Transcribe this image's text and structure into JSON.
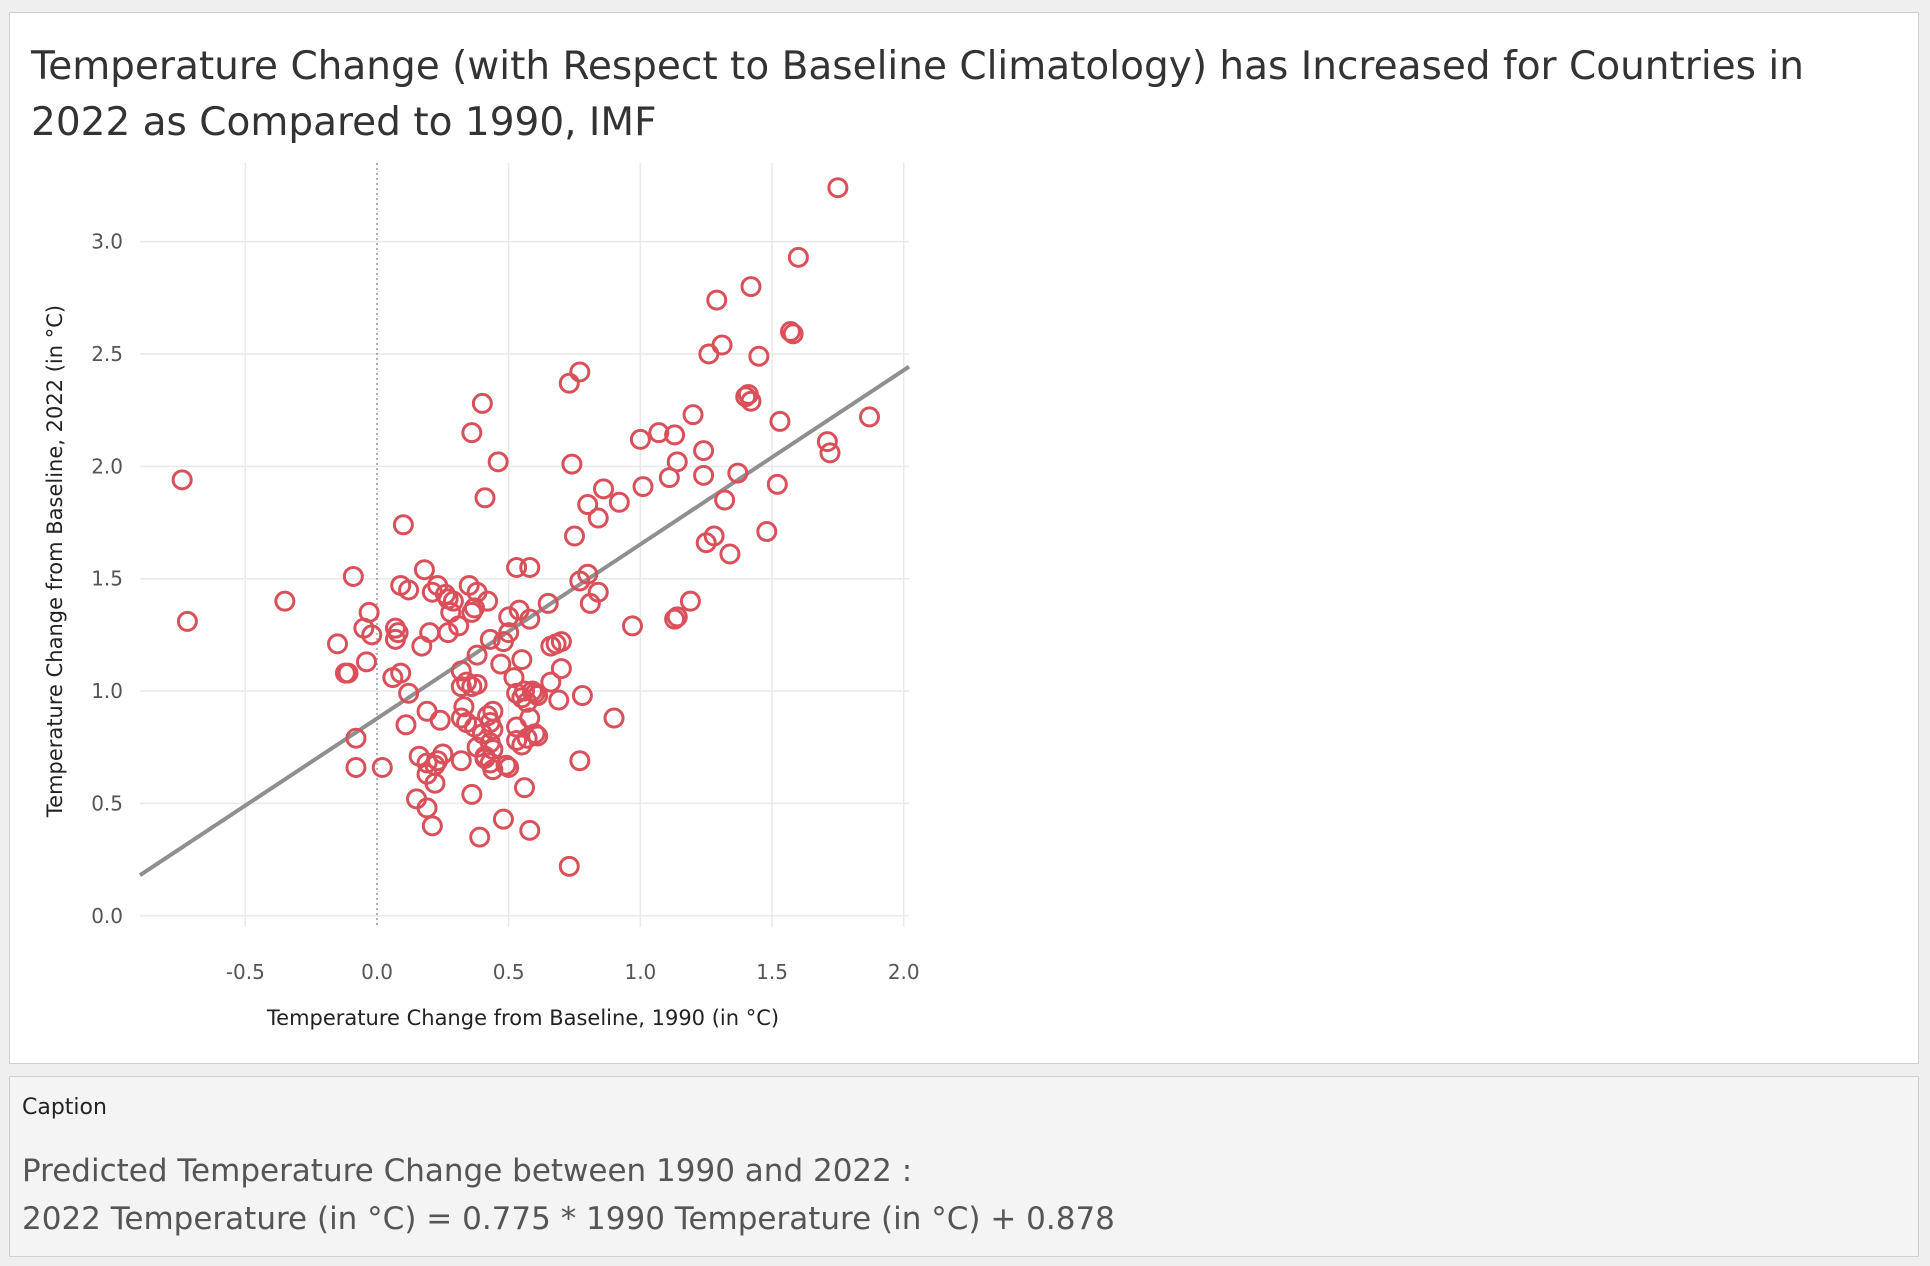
{
  "chart_data": {
    "type": "scatter",
    "title": "Temperature Change (with Respect to Baseline Climatology) has Increased for Countries in 2022 as Compared to 1990, IMF",
    "xlabel": "Temperature Change from Baseline, 1990 (in °C)",
    "ylabel": "Temperature Change from Baseline, 2022 (in °C)",
    "xlim": [
      -0.9,
      2.02
    ],
    "ylim": [
      -0.05,
      3.35
    ],
    "x_ticks": [
      "-0.5",
      "0.0",
      "0.5",
      "1.0",
      "1.5",
      "2.0"
    ],
    "y_ticks": [
      "0.0",
      "0.5",
      "1.0",
      "1.5",
      "2.0",
      "2.5",
      "3.0"
    ],
    "zero_reference_line": "x = 0 (dotted)",
    "trend_line": {
      "slope": 0.775,
      "intercept": 0.878
    },
    "point_color": "#d9505a",
    "trend_color": "#8f8f8f",
    "grid": true,
    "points": [
      [
        1.75,
        3.24
      ],
      [
        1.6,
        2.93
      ],
      [
        1.42,
        2.8
      ],
      [
        1.29,
        2.74
      ],
      [
        1.57,
        2.6
      ],
      [
        1.58,
        2.59
      ],
      [
        1.31,
        2.54
      ],
      [
        1.26,
        2.5
      ],
      [
        1.45,
        2.49
      ],
      [
        0.77,
        2.42
      ],
      [
        0.73,
        2.37
      ],
      [
        1.41,
        2.32
      ],
      [
        1.4,
        2.31
      ],
      [
        1.42,
        2.29
      ],
      [
        0.4,
        2.28
      ],
      [
        1.2,
        2.23
      ],
      [
        1.87,
        2.22
      ],
      [
        1.53,
        2.2
      ],
      [
        0.36,
        2.15
      ],
      [
        1.07,
        2.15
      ],
      [
        1.13,
        2.14
      ],
      [
        1.0,
        2.12
      ],
      [
        1.71,
        2.11
      ],
      [
        1.72,
        2.06
      ],
      [
        1.24,
        2.07
      ],
      [
        0.46,
        2.02
      ],
      [
        0.74,
        2.01
      ],
      [
        1.14,
        2.02
      ],
      [
        1.37,
        1.97
      ],
      [
        1.24,
        1.96
      ],
      [
        1.11,
        1.95
      ],
      [
        -0.74,
        1.94
      ],
      [
        1.52,
        1.92
      ],
      [
        1.01,
        1.91
      ],
      [
        0.86,
        1.9
      ],
      [
        0.41,
        1.86
      ],
      [
        1.32,
        1.85
      ],
      [
        0.92,
        1.84
      ],
      [
        0.8,
        1.83
      ],
      [
        0.84,
        1.77
      ],
      [
        0.1,
        1.74
      ],
      [
        1.48,
        1.71
      ],
      [
        1.28,
        1.69
      ],
      [
        0.75,
        1.69
      ],
      [
        1.25,
        1.66
      ],
      [
        1.34,
        1.61
      ],
      [
        0.53,
        1.55
      ],
      [
        0.58,
        1.55
      ],
      [
        0.8,
        1.52
      ],
      [
        0.18,
        1.54
      ],
      [
        -0.09,
        1.51
      ],
      [
        0.77,
        1.49
      ],
      [
        0.35,
        1.47
      ],
      [
        0.09,
        1.47
      ],
      [
        0.23,
        1.47
      ],
      [
        0.12,
        1.45
      ],
      [
        0.38,
        1.44
      ],
      [
        0.21,
        1.44
      ],
      [
        0.84,
        1.44
      ],
      [
        0.26,
        1.43
      ],
      [
        0.27,
        1.41
      ],
      [
        0.29,
        1.4
      ],
      [
        0.42,
        1.4
      ],
      [
        0.81,
        1.39
      ],
      [
        1.19,
        1.4
      ],
      [
        0.65,
        1.39
      ],
      [
        -0.35,
        1.4
      ],
      [
        0.37,
        1.37
      ],
      [
        0.54,
        1.36
      ],
      [
        0.36,
        1.35
      ],
      [
        0.28,
        1.35
      ],
      [
        -0.03,
        1.35
      ],
      [
        1.14,
        1.33
      ],
      [
        1.13,
        1.32
      ],
      [
        0.5,
        1.33
      ],
      [
        0.58,
        1.32
      ],
      [
        -0.72,
        1.31
      ],
      [
        0.97,
        1.29
      ],
      [
        0.31,
        1.29
      ],
      [
        -0.05,
        1.28
      ],
      [
        0.07,
        1.28
      ],
      [
        0.08,
        1.26
      ],
      [
        0.27,
        1.26
      ],
      [
        0.5,
        1.26
      ],
      [
        0.2,
        1.26
      ],
      [
        -0.02,
        1.25
      ],
      [
        0.07,
        1.23
      ],
      [
        0.43,
        1.23
      ],
      [
        0.48,
        1.22
      ],
      [
        0.7,
        1.22
      ],
      [
        0.68,
        1.21
      ],
      [
        0.66,
        1.2
      ],
      [
        -0.15,
        1.21
      ],
      [
        0.17,
        1.2
      ],
      [
        0.38,
        1.16
      ],
      [
        0.55,
        1.14
      ],
      [
        -0.04,
        1.13
      ],
      [
        0.47,
        1.12
      ],
      [
        0.7,
        1.1
      ],
      [
        0.32,
        1.09
      ],
      [
        -0.11,
        1.08
      ],
      [
        -0.12,
        1.08
      ],
      [
        0.09,
        1.08
      ],
      [
        0.06,
        1.06
      ],
      [
        0.52,
        1.06
      ],
      [
        0.34,
        1.04
      ],
      [
        0.38,
        1.03
      ],
      [
        0.66,
        1.04
      ],
      [
        0.36,
        1.02
      ],
      [
        0.32,
        1.02
      ],
      [
        0.12,
        0.99
      ],
      [
        0.56,
        1.0
      ],
      [
        0.53,
        0.99
      ],
      [
        0.59,
        1.0
      ],
      [
        0.6,
        0.99
      ],
      [
        0.61,
        0.98
      ],
      [
        0.55,
        0.97
      ],
      [
        0.78,
        0.98
      ],
      [
        0.69,
        0.96
      ],
      [
        0.33,
        0.93
      ],
      [
        0.57,
        0.95
      ],
      [
        0.19,
        0.91
      ],
      [
        0.44,
        0.91
      ],
      [
        0.42,
        0.89
      ],
      [
        0.9,
        0.88
      ],
      [
        0.32,
        0.88
      ],
      [
        0.24,
        0.87
      ],
      [
        0.58,
        0.88
      ],
      [
        0.34,
        0.86
      ],
      [
        0.11,
        0.85
      ],
      [
        0.43,
        0.86
      ],
      [
        0.37,
        0.84
      ],
      [
        0.53,
        0.84
      ],
      [
        0.44,
        0.83
      ],
      [
        0.4,
        0.81
      ],
      [
        0.6,
        0.81
      ],
      [
        0.61,
        0.8
      ],
      [
        0.57,
        0.79
      ],
      [
        -0.08,
        0.79
      ],
      [
        0.53,
        0.78
      ],
      [
        0.43,
        0.77
      ],
      [
        0.55,
        0.76
      ],
      [
        0.38,
        0.75
      ],
      [
        0.44,
        0.74
      ],
      [
        0.25,
        0.72
      ],
      [
        0.16,
        0.71
      ],
      [
        0.41,
        0.71
      ],
      [
        0.41,
        0.7
      ],
      [
        0.23,
        0.69
      ],
      [
        0.32,
        0.69
      ],
      [
        0.77,
        0.69
      ],
      [
        0.19,
        0.68
      ],
      [
        0.43,
        0.68
      ],
      [
        0.22,
        0.67
      ],
      [
        0.49,
        0.67
      ],
      [
        0.5,
        0.66
      ],
      [
        -0.08,
        0.66
      ],
      [
        0.02,
        0.66
      ],
      [
        0.44,
        0.65
      ],
      [
        0.19,
        0.63
      ],
      [
        0.22,
        0.59
      ],
      [
        0.56,
        0.57
      ],
      [
        0.36,
        0.54
      ],
      [
        0.15,
        0.52
      ],
      [
        0.19,
        0.48
      ],
      [
        0.48,
        0.43
      ],
      [
        0.21,
        0.4
      ],
      [
        0.58,
        0.38
      ],
      [
        0.39,
        0.35
      ],
      [
        0.73,
        0.22
      ]
    ]
  },
  "caption": {
    "header": "Caption",
    "line1": "Predicted Temperature Change between 1990 and 2022 :",
    "line2": "2022 Temperature (in °C) = 0.775 * 1990 Temperature (in °C) + 0.878"
  }
}
